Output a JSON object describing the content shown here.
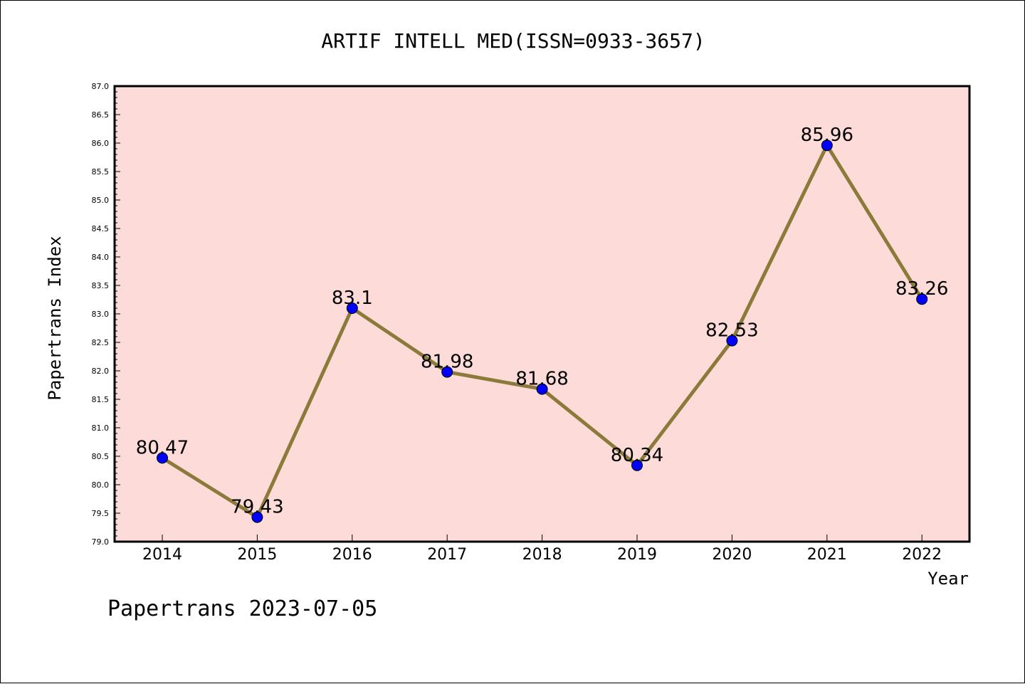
{
  "chart_data": {
    "type": "line",
    "title": "ARTIF INTELL MED(ISSN=0933-3657)",
    "xlabel": "Year",
    "ylabel": "Papertrans Index",
    "categories": [
      "2014",
      "2015",
      "2016",
      "2017",
      "2018",
      "2019",
      "2020",
      "2021",
      "2022"
    ],
    "series": [
      {
        "values": [
          80.47,
          79.43,
          83.1,
          81.98,
          81.68,
          80.34,
          82.53,
          85.96,
          83.26
        ],
        "labels": [
          "80.47",
          "79.43",
          "83.1",
          "81.98",
          "81.68",
          "80.34",
          "82.53",
          "85.96",
          "83.26"
        ]
      }
    ],
    "ylim": [
      79.0,
      87.0
    ],
    "yticks": [
      "79.0",
      "79.5",
      "80.0",
      "80.5",
      "81.0",
      "81.5",
      "82.0",
      "82.5",
      "83.0",
      "83.5",
      "84.0",
      "84.5",
      "85.0",
      "85.5",
      "86.0",
      "86.5",
      "87.0"
    ],
    "grid": false,
    "footer": "Papertrans 2023-07-05",
    "colors": {
      "plot_background": "#fddbd8",
      "line": "#8c7a3a",
      "marker": "#0000ff"
    }
  }
}
